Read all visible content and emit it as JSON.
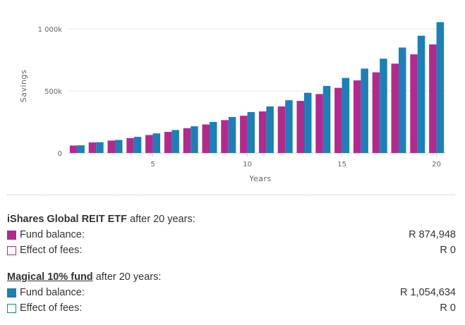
{
  "colors": {
    "series_a": "#b5298f",
    "series_b": "#1a80b8"
  },
  "chart_data": {
    "type": "bar",
    "xlabel": "Years",
    "ylabel": "Savings",
    "ylim": [
      0,
      1050000
    ],
    "yticks": [
      0,
      500000,
      1000000
    ],
    "ytick_labels": [
      "0",
      "500k",
      "1 000k"
    ],
    "xticks": [
      5,
      10,
      15,
      20
    ],
    "categories": [
      1,
      2,
      3,
      4,
      5,
      6,
      7,
      8,
      9,
      10,
      11,
      12,
      13,
      14,
      15,
      16,
      17,
      18,
      19,
      20
    ],
    "series": [
      {
        "name": "iShares Global REIT ETF",
        "values": [
          60000,
          85000,
          100000,
          120000,
          145000,
          170000,
          200000,
          230000,
          265000,
          300000,
          335000,
          375000,
          420000,
          475000,
          525000,
          585000,
          650000,
          720000,
          795000,
          874948
        ]
      },
      {
        "name": "Magical 10% fund",
        "values": [
          62000,
          87000,
          105000,
          130000,
          158000,
          185000,
          215000,
          250000,
          290000,
          330000,
          375000,
          425000,
          485000,
          540000,
          605000,
          680000,
          760000,
          850000,
          945000,
          1054634
        ]
      }
    ],
    "grid": "horizontal"
  },
  "summary": {
    "fund_a": {
      "name": "iShares Global REIT ETF",
      "suffix": " after 20 years:",
      "balance_label": "Fund balance:",
      "balance_value": "R 874,948",
      "fees_label": "Effect of fees:",
      "fees_value": "R 0"
    },
    "fund_b": {
      "name": "Magical 10% fund",
      "suffix": " after 20 years:",
      "balance_label": "Fund balance:",
      "balance_value": "R 1,054,634",
      "fees_label": "Effect of fees:",
      "fees_value": "R 0"
    }
  }
}
